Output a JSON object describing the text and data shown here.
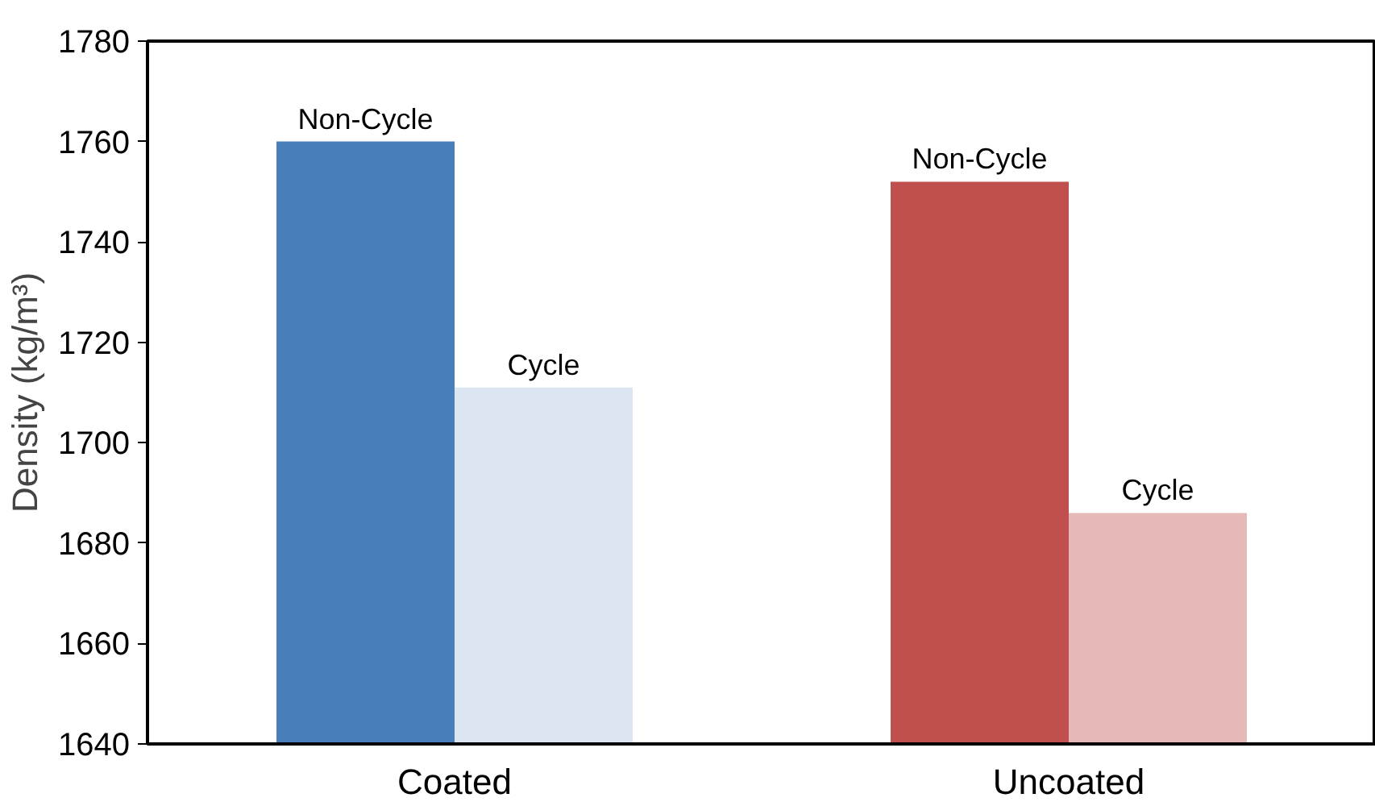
{
  "chart_data": {
    "type": "bar",
    "ylabel": "Density (kg/m³)",
    "categories": [
      "Coated",
      "Uncoated"
    ],
    "series": [
      {
        "name": "Non-Cycle",
        "colors": [
          "#4a7ebb",
          "#c0504d"
        ],
        "values": [
          1760,
          1752
        ]
      },
      {
        "name": "Cycle",
        "colors": [
          "#dce6f2",
          "#e6b9b8"
        ],
        "values": [
          1711,
          1686
        ]
      }
    ],
    "ylim": [
      1640,
      1780
    ],
    "yticks": [
      1640,
      1660,
      1680,
      1700,
      1720,
      1740,
      1760,
      1780
    ],
    "grid": false
  }
}
